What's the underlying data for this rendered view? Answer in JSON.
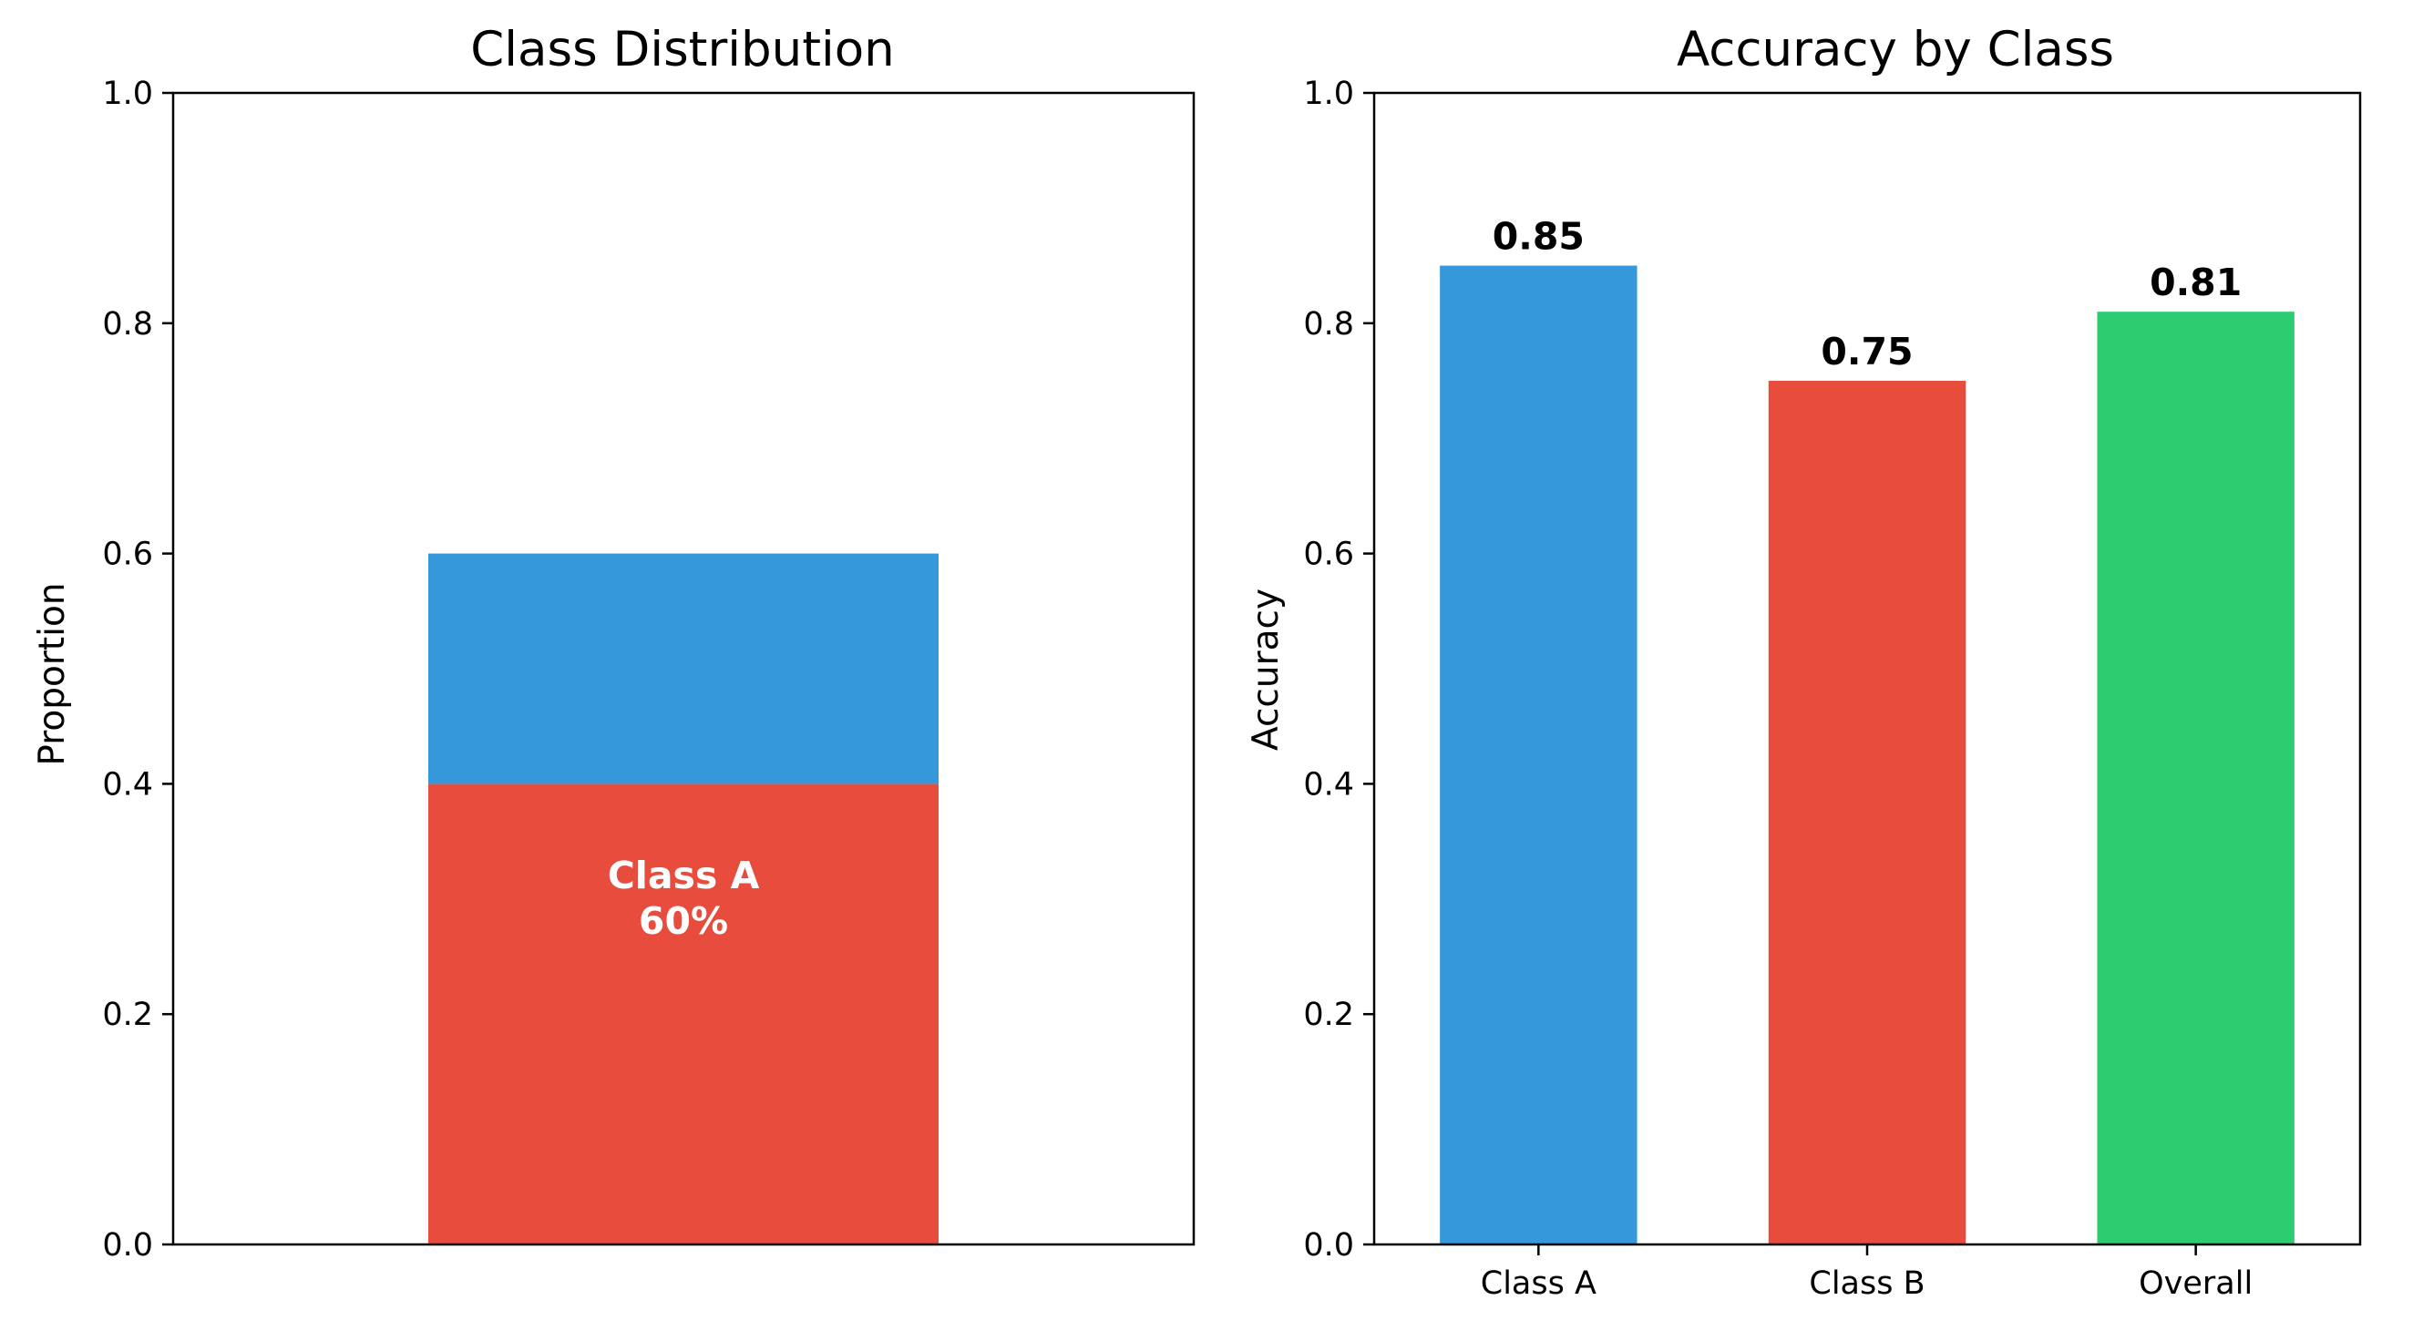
{
  "chart_data": [
    {
      "type": "bar",
      "stacked": true,
      "title": "Class Distribution",
      "xlabel": "",
      "ylabel": "Proportion",
      "ylim": [
        0,
        1.0
      ],
      "yticks": [
        "0.0",
        "0.2",
        "0.4",
        "0.6",
        "0.8",
        "1.0"
      ],
      "grid": false,
      "segments": [
        {
          "bottom": 0.0,
          "value": 0.4,
          "color": "#e74c3c"
        },
        {
          "bottom": 0.4,
          "value": 0.2,
          "color": "#3498db"
        }
      ],
      "annotation": {
        "line1": "Class A",
        "line2": "60%",
        "y": 0.3
      }
    },
    {
      "type": "bar",
      "title": "Accuracy by Class",
      "xlabel": "",
      "ylabel": "Accuracy",
      "ylim": [
        0,
        1.0
      ],
      "yticks": [
        "0.0",
        "0.2",
        "0.4",
        "0.6",
        "0.8",
        "1.0"
      ],
      "grid": false,
      "categories": [
        "Class A",
        "Class B",
        "Overall"
      ],
      "values": [
        0.85,
        0.75,
        0.81
      ],
      "data_labels": [
        "0.85",
        "0.75",
        "0.81"
      ],
      "colors": [
        "#3498db",
        "#e74c3c",
        "#2ecc71"
      ]
    }
  ]
}
